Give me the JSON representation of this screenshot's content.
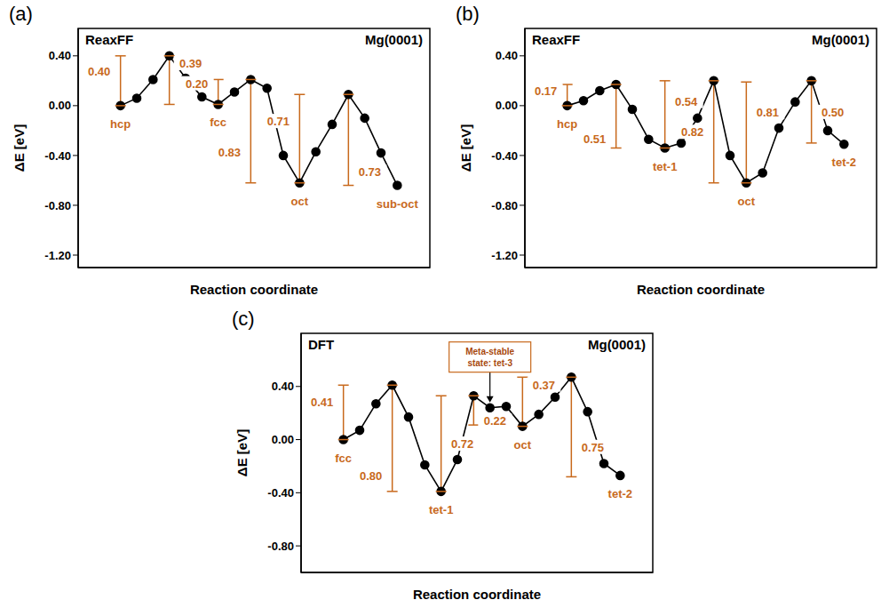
{
  "chart_data": [
    {
      "type": "line",
      "panel_label": "(a)",
      "title": "ReaxFF",
      "subtitle": "Mg(0001)",
      "xlabel": "Reaction coordinate",
      "ylabel": "ΔE [eV]",
      "x": [
        0,
        1,
        2,
        3,
        4,
        5,
        6,
        7,
        8,
        9,
        10,
        11,
        12,
        13,
        14,
        15,
        16,
        17
      ],
      "values": [
        0.0,
        0.06,
        0.21,
        0.4,
        0.22,
        0.07,
        0.01,
        0.11,
        0.21,
        0.14,
        -0.4,
        -0.62,
        -0.37,
        -0.15,
        0.09,
        -0.1,
        -0.38,
        -0.64
      ],
      "color": "#000000",
      "marker": "circle",
      "line_style": "solid",
      "grid": false,
      "tick_labels": "y",
      "xlim": [
        -2.6,
        19
      ],
      "ylim": [
        -1.3,
        0.62
      ],
      "yticks": [
        {
          "value": -1.2,
          "label": "-1.20"
        },
        {
          "value": -0.8,
          "label": "-0.80"
        },
        {
          "value": -0.4,
          "label": "-0.40"
        },
        {
          "value": 0,
          "label": "0.00"
        },
        {
          "value": 0.4,
          "label": "0.40"
        }
      ],
      "states": [
        {
          "x": 0,
          "label": "hcp"
        },
        {
          "x": 6,
          "label": "fcc"
        },
        {
          "x": 11,
          "label": "oct"
        },
        {
          "x": 17,
          "label": "sub-oct"
        }
      ],
      "barriers": [
        {
          "x": 0,
          "from": 0.0,
          "to": 0.4,
          "label": "0.40"
        },
        {
          "x": 3,
          "from": 0.4,
          "to": 0.01,
          "label": "0.39"
        },
        {
          "x": 6,
          "from": 0.01,
          "to": 0.21,
          "label": "0.20"
        },
        {
          "x": 8,
          "from": 0.21,
          "to": -0.62,
          "label": "0.83"
        },
        {
          "x": 11,
          "from": -0.62,
          "to": 0.09,
          "label": "0.71"
        },
        {
          "x": 14,
          "from": 0.09,
          "to": -0.64,
          "label": "0.73"
        }
      ]
    },
    {
      "type": "line",
      "panel_label": "(b)",
      "title": "ReaxFF",
      "subtitle": "Mg(0001)",
      "xlabel": "Reaction coordinate",
      "ylabel": "ΔE [eV]",
      "x": [
        0,
        1,
        2,
        3,
        4,
        5,
        6,
        7,
        8,
        9,
        10,
        11,
        12,
        13,
        14,
        15,
        16,
        17
      ],
      "values": [
        0.0,
        0.04,
        0.12,
        0.17,
        -0.03,
        -0.27,
        -0.34,
        -0.3,
        -0.1,
        0.2,
        -0.4,
        -0.62,
        -0.54,
        -0.18,
        0.03,
        0.2,
        -0.2,
        -0.31
      ],
      "color": "#000000",
      "marker": "circle",
      "line_style": "solid",
      "grid": false,
      "tick_labels": "y",
      "xlim": [
        -2.6,
        19
      ],
      "ylim": [
        -1.3,
        0.62
      ],
      "yticks": [
        {
          "value": -1.2,
          "label": "-1.20"
        },
        {
          "value": -0.8,
          "label": "-0.80"
        },
        {
          "value": -0.4,
          "label": "-0.40"
        },
        {
          "value": 0,
          "label": "0.00"
        },
        {
          "value": 0.4,
          "label": "0.40"
        }
      ],
      "states": [
        {
          "x": 0,
          "label": "hcp"
        },
        {
          "x": 6,
          "label": "tet-1"
        },
        {
          "x": 11,
          "label": "oct"
        },
        {
          "x": 17,
          "label": "tet-2"
        }
      ],
      "barriers": [
        {
          "x": 0,
          "from": 0.0,
          "to": 0.17,
          "label": "0.17"
        },
        {
          "x": 3,
          "from": 0.17,
          "to": -0.34,
          "label": "0.51"
        },
        {
          "x": 6,
          "from": -0.34,
          "to": 0.2,
          "label": "0.54"
        },
        {
          "x": 9,
          "from": 0.2,
          "to": -0.62,
          "label": "0.82"
        },
        {
          "x": 11,
          "from": -0.62,
          "to": 0.19,
          "label": "0.81"
        },
        {
          "x": 15,
          "from": 0.2,
          "to": -0.3,
          "label": "0.50"
        }
      ]
    },
    {
      "type": "line",
      "panel_label": "(c)",
      "title": "DFT",
      "subtitle": "Mg(0001)",
      "xlabel": "Reaction coordinate",
      "ylabel": "ΔE [eV]",
      "x": [
        0,
        1,
        2,
        3,
        4,
        5,
        6,
        7,
        8,
        9,
        10,
        11,
        12,
        13,
        14,
        15,
        16,
        17
      ],
      "values": [
        0.0,
        0.07,
        0.27,
        0.41,
        0.17,
        -0.19,
        -0.39,
        -0.15,
        0.33,
        0.24,
        0.25,
        0.1,
        0.19,
        0.32,
        0.47,
        0.21,
        -0.18,
        -0.27
      ],
      "color": "#000000",
      "marker": "circle",
      "line_style": "solid",
      "grid": false,
      "tick_labels": "y",
      "xlim": [
        -2.6,
        19
      ],
      "ylim": [
        -1.0,
        0.8
      ],
      "yticks": [
        {
          "value": -0.8,
          "label": "-0.80"
        },
        {
          "value": -0.4,
          "label": "-0.40"
        },
        {
          "value": 0,
          "label": "0.00"
        },
        {
          "value": 0.4,
          "label": "0.40"
        }
      ],
      "states": [
        {
          "x": 0,
          "label": "fcc"
        },
        {
          "x": 6,
          "label": "tet-1"
        },
        {
          "x": 11,
          "label": "oct"
        },
        {
          "x": 17,
          "label": "tet-2"
        }
      ],
      "barriers": [
        {
          "x": 0,
          "from": 0.0,
          "to": 0.41,
          "label": "0.41"
        },
        {
          "x": 3,
          "from": 0.41,
          "to": -0.39,
          "label": "0.80"
        },
        {
          "x": 6,
          "from": -0.39,
          "to": 0.33,
          "label": "0.72"
        },
        {
          "x": 8,
          "from": 0.33,
          "to": 0.11,
          "label": "0.22"
        },
        {
          "x": 11,
          "from": 0.1,
          "to": 0.47,
          "label": "0.37"
        },
        {
          "x": 14,
          "from": 0.47,
          "to": -0.28,
          "label": "0.75"
        }
      ],
      "annotations": [
        {
          "text": "Meta-stable state: tet-3",
          "x": 9,
          "y": 0.24
        }
      ]
    }
  ]
}
